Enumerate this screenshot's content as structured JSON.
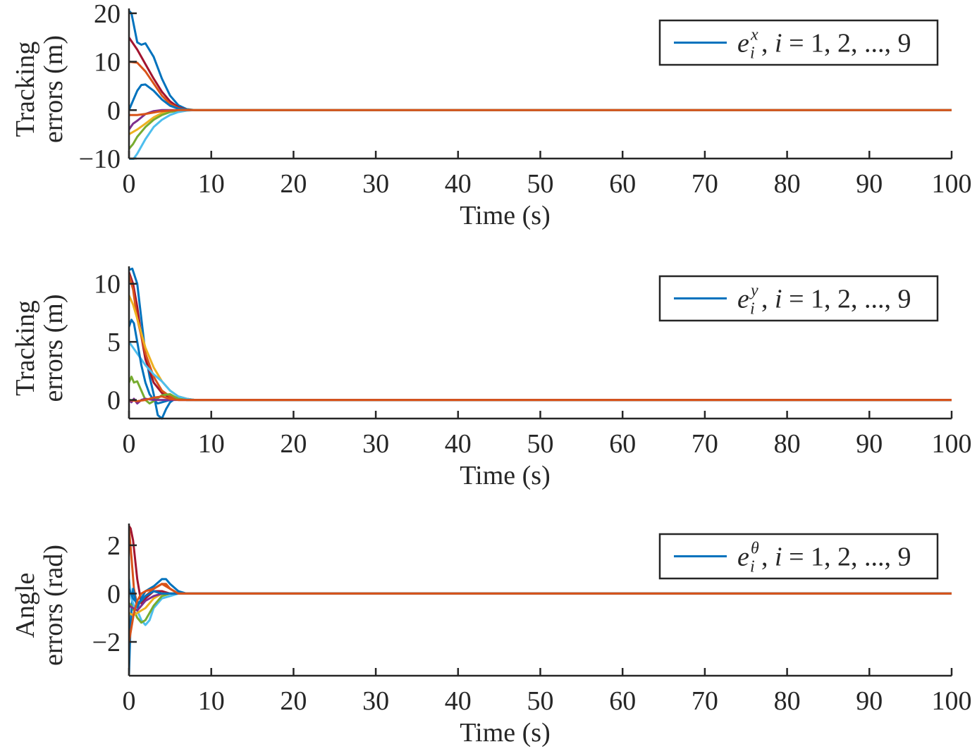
{
  "chart_data": [
    {
      "type": "line",
      "xlabel": "Time (s)",
      "ylabel": [
        "Tracking",
        "errors (m)"
      ],
      "xlim": [
        0,
        100
      ],
      "ylim": [
        -10,
        21
      ],
      "xticks": [
        0,
        10,
        20,
        30,
        40,
        50,
        60,
        70,
        80,
        90,
        100
      ],
      "yticks": [
        -10,
        0,
        10,
        20
      ],
      "ytick_labels": [
        "−10",
        "0",
        "10",
        "20"
      ],
      "grid": false,
      "legend": {
        "placement": "top-right",
        "symbol": "e",
        "superscript": "x",
        "subscript": "i",
        "text": ", i = 1, 2, ..., 9",
        "color": "#0072BD"
      },
      "series": [
        {
          "color": "#0072BD",
          "x": [
            0,
            0.3,
            1,
            1.5,
            2,
            3,
            4,
            5,
            6,
            7,
            8,
            100
          ],
          "y": [
            20.5,
            20,
            14,
            13.5,
            13.8,
            11,
            6.5,
            3,
            1,
            0.2,
            0,
            0
          ]
        },
        {
          "color": "#A2142F",
          "x": [
            0,
            1,
            2,
            3,
            4,
            5,
            6,
            7,
            8,
            100
          ],
          "y": [
            15,
            12.5,
            9.5,
            6.5,
            3.8,
            1.8,
            0.6,
            0.1,
            0,
            0
          ]
        },
        {
          "color": "#D95319",
          "x": [
            0,
            1,
            2,
            3,
            4,
            5,
            6,
            7,
            8,
            100
          ],
          "y": [
            10,
            9.8,
            8,
            5.5,
            3,
            1.3,
            0.4,
            0.1,
            0,
            0
          ]
        },
        {
          "color": "#0072BD",
          "x": [
            0,
            0.5,
            1,
            1.5,
            2,
            3,
            4,
            5,
            6,
            7,
            8,
            100
          ],
          "y": [
            0,
            2,
            4,
            5.2,
            5.3,
            4,
            2.2,
            0.9,
            0.3,
            0.1,
            0,
            0
          ]
        },
        {
          "color": "#7E2F8E",
          "x": [
            0,
            0.5,
            1,
            1.5,
            2,
            3,
            4,
            5,
            6,
            100
          ],
          "y": [
            -4,
            -2.8,
            -2.2,
            -1.5,
            -0.8,
            -0.2,
            0,
            0,
            0,
            0
          ]
        },
        {
          "color": "#EDB120",
          "x": [
            0,
            0.5,
            1,
            2,
            3,
            4,
            5,
            6,
            7,
            100
          ],
          "y": [
            -5,
            -4.5,
            -4,
            -2.8,
            -1.5,
            -0.6,
            -0.2,
            0,
            0,
            0
          ]
        },
        {
          "color": "#77AC30",
          "x": [
            0,
            0.5,
            1,
            2,
            3,
            4,
            5,
            6,
            7,
            100
          ],
          "y": [
            -8,
            -7,
            -5.5,
            -3.5,
            -2,
            -1,
            -0.4,
            -0.1,
            0,
            0
          ]
        },
        {
          "color": "#4DBEEE",
          "x": [
            0,
            0.5,
            1,
            2,
            3,
            4,
            5,
            6,
            7,
            8,
            100
          ],
          "y": [
            -10.5,
            -10.2,
            -9,
            -6,
            -3.5,
            -2,
            -1,
            -0.4,
            -0.1,
            0,
            0
          ]
        },
        {
          "color": "#D95319",
          "x": [
            0,
            1,
            2,
            3,
            4,
            5,
            6,
            7,
            100
          ],
          "y": [
            -1,
            -1,
            -0.8,
            -0.5,
            -0.2,
            -0.1,
            0,
            0,
            0
          ]
        }
      ]
    },
    {
      "type": "line",
      "xlabel": "Time (s)",
      "ylabel": [
        "Tracking",
        "errors (m)"
      ],
      "xlim": [
        0,
        100
      ],
      "ylim": [
        -1.6,
        11.5
      ],
      "xticks": [
        0,
        10,
        20,
        30,
        40,
        50,
        60,
        70,
        80,
        90,
        100
      ],
      "yticks": [
        0,
        5,
        10
      ],
      "ytick_labels": [
        "0",
        "5",
        "10"
      ],
      "grid": false,
      "legend": {
        "placement": "top-right",
        "symbol": "e",
        "superscript": "y",
        "subscript": "i",
        "text": ", i = 1, 2, ..., 9",
        "color": "#0072BD"
      },
      "series": [
        {
          "color": "#0072BD",
          "x": [
            0,
            0.4,
            1,
            1.5,
            2,
            2.5,
            3,
            3.5,
            4,
            4.5,
            5,
            6,
            7,
            8,
            100
          ],
          "y": [
            11.2,
            11.3,
            10,
            7,
            4,
            2,
            0.5,
            -1.3,
            -1.6,
            -0.8,
            -0.2,
            0.3,
            0.1,
            0,
            0
          ]
        },
        {
          "color": "#A2142F",
          "x": [
            0,
            0.5,
            1,
            1.5,
            2,
            3,
            4,
            5,
            6,
            7,
            100
          ],
          "y": [
            11,
            10,
            8,
            5.5,
            3.5,
            1.5,
            0.6,
            0.2,
            0,
            0,
            0
          ]
        },
        {
          "color": "#D95319",
          "x": [
            0,
            0.5,
            1,
            2,
            3,
            4,
            5,
            6,
            7,
            100
          ],
          "y": [
            10.8,
            9.5,
            7,
            4,
            2,
            0.8,
            0.3,
            0.1,
            0,
            0
          ]
        },
        {
          "color": "#EDB120",
          "x": [
            0,
            0.5,
            1,
            2,
            3,
            4,
            5,
            6,
            7,
            8,
            100
          ],
          "y": [
            9,
            8.2,
            7,
            4.5,
            2.8,
            1.6,
            0.8,
            0.3,
            0.1,
            0,
            0
          ]
        },
        {
          "color": "#4DBEEE",
          "x": [
            0,
            1,
            2,
            3,
            4,
            5,
            6,
            7,
            8,
            100
          ],
          "y": [
            5,
            4,
            3,
            2.2,
            1.6,
            0.8,
            0.3,
            0.1,
            0,
            0
          ]
        },
        {
          "color": "#0072BD",
          "x": [
            0,
            0.3,
            0.6,
            1,
            1.5,
            2,
            2.5,
            3,
            3.5,
            4,
            5,
            6,
            7,
            8,
            100
          ],
          "y": [
            6.3,
            6.9,
            6.6,
            5,
            3,
            1.5,
            0.5,
            0,
            -0.3,
            -0.2,
            0,
            0.1,
            0,
            0,
            0
          ]
        },
        {
          "color": "#77AC30",
          "x": [
            0,
            0.3,
            0.6,
            1,
            1.5,
            2,
            2.5,
            3,
            4,
            5,
            6,
            7,
            100
          ],
          "y": [
            1.5,
            2,
            1.5,
            1.6,
            0.8,
            0,
            -0.3,
            -0.1,
            0.4,
            0.5,
            0.1,
            0,
            0
          ]
        },
        {
          "color": "#7E2F8E",
          "x": [
            0,
            0.3,
            0.6,
            1,
            1.5,
            2,
            3,
            4,
            5,
            100
          ],
          "y": [
            0,
            -0.2,
            0.1,
            -0.3,
            0,
            0.1,
            0,
            0,
            0,
            0
          ]
        },
        {
          "color": "#D95319",
          "x": [
            0,
            1,
            2,
            3,
            4,
            5,
            6,
            7,
            100
          ],
          "y": [
            0,
            -0.1,
            0,
            0.2,
            0.3,
            0.1,
            0,
            0,
            0
          ]
        }
      ]
    },
    {
      "type": "line",
      "xlabel": "Time (s)",
      "ylabel": [
        "Angle",
        "errors (rad)"
      ],
      "xlim": [
        0,
        100
      ],
      "ylim": [
        -3.4,
        2.9
      ],
      "xticks": [
        0,
        10,
        20,
        30,
        40,
        50,
        60,
        70,
        80,
        90,
        100
      ],
      "yticks": [
        -2,
        0,
        2
      ],
      "ytick_labels": [
        "−2",
        "0",
        "2"
      ],
      "grid": false,
      "legend": {
        "placement": "top-right",
        "symbol": "e",
        "superscript": "θ",
        "subscript": "i",
        "text": ", i = 1, 2, ..., 9",
        "color": "#0072BD"
      },
      "series": [
        {
          "color": "#A2142F",
          "x": [
            0,
            0.2,
            0.5,
            1,
            1.5,
            2,
            3,
            4,
            5,
            6,
            7,
            100
          ],
          "y": [
            2.8,
            2.7,
            2.2,
            0.6,
            -0.4,
            -0.2,
            0.1,
            0.1,
            0,
            0,
            0,
            0
          ]
        },
        {
          "color": "#D95319",
          "x": [
            0,
            0.3,
            0.6,
            1,
            1.5,
            2,
            3,
            4,
            5,
            6,
            7,
            100
          ],
          "y": [
            2.7,
            1.5,
            0.2,
            -0.5,
            -0.3,
            -0.1,
            0.2,
            0.4,
            0.2,
            0,
            0,
            0
          ]
        },
        {
          "color": "#0072BD",
          "x": [
            0,
            0.2,
            0.5,
            1,
            1.5,
            2,
            3,
            4,
            4.5,
            5,
            6,
            7,
            8,
            100
          ],
          "y": [
            -3.3,
            -1.2,
            0.2,
            -0.6,
            -0.2,
            0.1,
            0.3,
            0.6,
            0.6,
            0.4,
            0.1,
            0,
            0,
            0
          ]
        },
        {
          "color": "#4DBEEE",
          "x": [
            0,
            0.3,
            0.6,
            1,
            1.5,
            2,
            2.5,
            3,
            4,
            5,
            6,
            7,
            8,
            100
          ],
          "y": [
            0.6,
            -0.2,
            -0.5,
            -0.7,
            -1.1,
            -1.3,
            -1.1,
            -0.6,
            -0.2,
            -0.1,
            0,
            0,
            0,
            0
          ]
        },
        {
          "color": "#77AC30",
          "x": [
            0,
            0.3,
            0.6,
            1,
            1.5,
            2,
            2.5,
            3,
            4,
            5,
            6,
            7,
            100
          ],
          "y": [
            -0.4,
            -0.5,
            -0.7,
            -1,
            -1.2,
            -1.1,
            -0.8,
            -0.5,
            -0.1,
            0,
            0,
            0,
            0
          ]
        },
        {
          "color": "#EDB120",
          "x": [
            0,
            0.5,
            1,
            1.5,
            2,
            2.5,
            3,
            4,
            5,
            6,
            100
          ],
          "y": [
            -0.8,
            -0.9,
            -0.8,
            -0.7,
            -0.6,
            -0.4,
            -0.2,
            0,
            0,
            0,
            0
          ]
        },
        {
          "color": "#7E2F8E",
          "x": [
            0,
            0.5,
            1,
            1.5,
            2,
            3,
            4,
            5,
            6,
            100
          ],
          "y": [
            -0.5,
            -0.6,
            -0.7,
            -0.5,
            -0.3,
            -0.1,
            0,
            0,
            0,
            0
          ]
        },
        {
          "color": "#0072BD",
          "x": [
            0,
            0.5,
            1,
            1.5,
            2,
            3,
            4,
            5,
            6,
            100
          ],
          "y": [
            0.2,
            -0.2,
            -0.4,
            -0.3,
            -0.1,
            0.1,
            0,
            0,
            0,
            0
          ]
        },
        {
          "color": "#D95319",
          "x": [
            0,
            0.3,
            0.6,
            1,
            1.5,
            2,
            3,
            4,
            4.5,
            5,
            6,
            7,
            100
          ],
          "y": [
            -2,
            -1.4,
            -0.8,
            -0.3,
            0,
            0.1,
            0.2,
            0.4,
            0.4,
            0.2,
            0,
            0,
            0
          ]
        }
      ]
    }
  ]
}
